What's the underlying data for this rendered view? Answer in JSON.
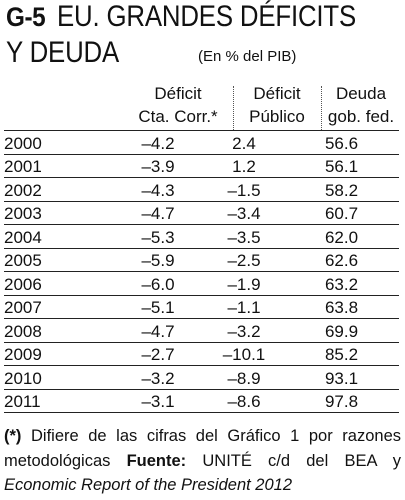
{
  "title": {
    "id": "G-5",
    "line1": "EU. GRANDES DÉFICITS",
    "line2": "Y DEUDA"
  },
  "subtitle": "(En % del PIB)",
  "columns": [
    {
      "line1": "Déficit",
      "line2": "Cta. Corr.*"
    },
    {
      "line1": "Déficit",
      "line2": "Público"
    },
    {
      "line1": "Deuda",
      "line2": "gob. fed."
    }
  ],
  "rows": [
    {
      "year": "2000",
      "cta": "–4.2",
      "publico": "2.4",
      "deuda": "56.6"
    },
    {
      "year": "2001",
      "cta": "–3.9",
      "publico": "1.2",
      "deuda": "56.1"
    },
    {
      "year": "2002",
      "cta": "–4.3",
      "publico": "–1.5",
      "deuda": "58.2"
    },
    {
      "year": "2003",
      "cta": "–4.7",
      "publico": "–3.4",
      "deuda": "60.7"
    },
    {
      "year": "2004",
      "cta": "–5.3",
      "publico": "–3.5",
      "deuda": "62.0"
    },
    {
      "year": "2005",
      "cta": "–5.9",
      "publico": "–2.5",
      "deuda": "62.6"
    },
    {
      "year": "2006",
      "cta": "–6.0",
      "publico": "–1.9",
      "deuda": "63.2"
    },
    {
      "year": "2007",
      "cta": "–5.1",
      "publico": "–1.1",
      "deuda": "63.8"
    },
    {
      "year": "2008",
      "cta": "–4.7",
      "publico": "–3.2",
      "deuda": "69.9"
    },
    {
      "year": "2009",
      "cta": "–2.7",
      "publico": "–10.1",
      "deuda": "85.2"
    },
    {
      "year": "2010",
      "cta": "–3.2",
      "publico": "–8.9",
      "deuda": "93.1"
    },
    {
      "year": "2011",
      "cta": "–3.1",
      "publico": "–8.6",
      "deuda": "97.8"
    }
  ],
  "footnote": {
    "marker": "(*)",
    "text1": " Difiere de las cifras del Gráfico 1 por razones metodológicas ",
    "source_label": "Fuente:",
    "text2": " UNITÉ c/d del BEA y ",
    "source_italic": "Economic Report of the President 2012"
  }
}
